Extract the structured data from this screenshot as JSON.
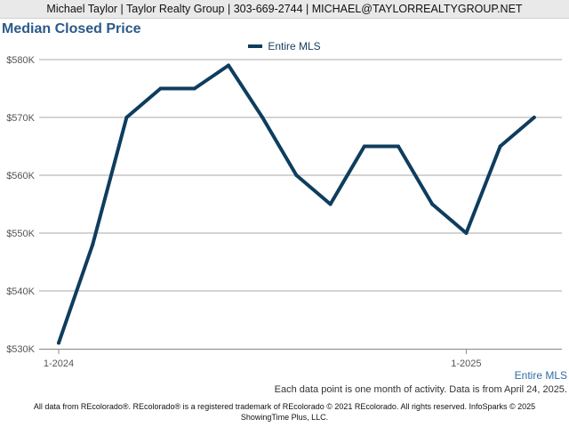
{
  "header": {
    "contact_line": "Michael Taylor | Taylor Realty Group | 303-669-2744 | MICHAEL@TAYLORREALTYGROUP.NET"
  },
  "chart_title": "Median Closed Price",
  "series_label": "Entire MLS",
  "footnote": "Each data point is one month of activity. Data is from April 24, 2025.",
  "disclaimer_line1": "All data from REcolorado®. REcolorado® is a registered trademark of REcolorado © 2021 REcolorado. All rights reserved. InfoSparks © 2025",
  "disclaimer_line2": "ShowingTime Plus, LLC.",
  "colors": {
    "line": "#0e3d5e",
    "title": "#2b5a87",
    "gridline": "#a8a8a8",
    "axis_text": "#555555"
  },
  "chart_data": {
    "type": "line",
    "title": "Median Closed Price",
    "xlabel": "",
    "ylabel": "",
    "x": [
      "2024-01",
      "2024-02",
      "2024-03",
      "2024-04",
      "2024-05",
      "2024-06",
      "2024-07",
      "2024-08",
      "2024-09",
      "2024-10",
      "2024-11",
      "2024-12",
      "2025-01",
      "2025-02",
      "2025-03"
    ],
    "x_ticks": [
      {
        "x": "2024-01",
        "label": "1-2024"
      },
      {
        "x": "2025-01",
        "label": "1-2025"
      }
    ],
    "y_ticks": [
      530000,
      540000,
      550000,
      560000,
      570000,
      580000
    ],
    "y_tick_labels": [
      "$530K",
      "$540K",
      "$550K",
      "$560K",
      "$570K",
      "$580K"
    ],
    "ylim": [
      530000,
      580000
    ],
    "grid": true,
    "legend_position": "top-center",
    "series": [
      {
        "name": "Entire MLS",
        "values": [
          531000,
          548000,
          570000,
          575000,
          575000,
          579000,
          570000,
          560000,
          555000,
          565000,
          565000,
          555000,
          550000,
          565000,
          570000
        ]
      }
    ]
  }
}
